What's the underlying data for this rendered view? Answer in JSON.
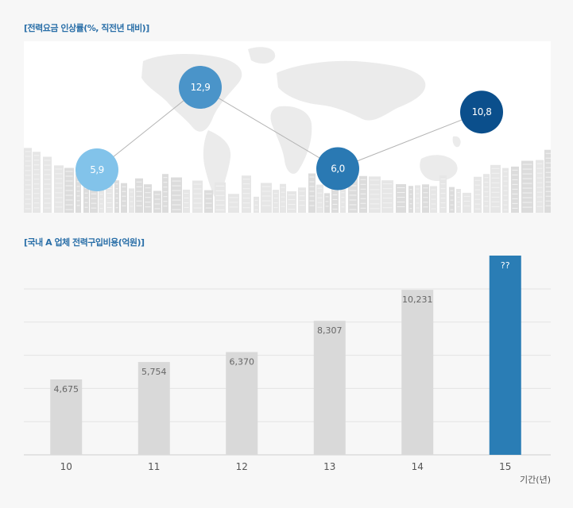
{
  "chart_data": [
    {
      "type": "line",
      "title": "[전력요금 인상률(%, 직전년 대비)]",
      "points": [
        {
          "label": "5,9",
          "value": 5.9,
          "color": "#82c3ea"
        },
        {
          "label": "12,9",
          "value": 12.9,
          "color": "#4a94c9"
        },
        {
          "label": "6,0",
          "value": 6.0,
          "color": "#2a79b3"
        },
        {
          "label": "10,8",
          "value": 10.8,
          "color": "#0b4f8c"
        }
      ]
    },
    {
      "type": "bar",
      "title": "[국내 A 업체 전력구입비용(억원)]",
      "categories": [
        "10",
        "11",
        "12",
        "13",
        "14",
        "15"
      ],
      "values": [
        4675,
        5754,
        6370,
        8307,
        10231,
        null
      ],
      "value_labels": [
        "4,675",
        "5,754",
        "6,370",
        "8,307",
        "10,231",
        "??"
      ],
      "bar_colors": [
        "#d9d9d9",
        "#d9d9d9",
        "#d9d9d9",
        "#d9d9d9",
        "#d9d9d9",
        "#2a7db5"
      ],
      "xlabel": "기간(년)",
      "grid": true
    }
  ]
}
